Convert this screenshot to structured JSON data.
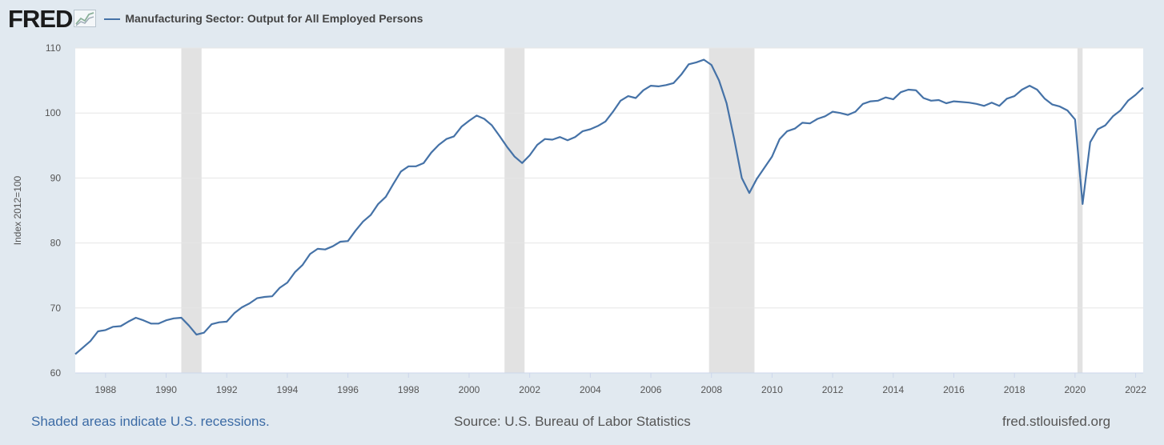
{
  "brand": "FRED",
  "legend": {
    "label": "Manufacturing Sector: Output for All Employed Persons"
  },
  "footer": {
    "recession_note": "Shaded areas indicate U.S. recessions.",
    "source": "Source: U.S. Bureau of Labor Statistics",
    "site": "fred.stlouisfed.org"
  },
  "colors": {
    "series": "#4572a7",
    "recession": "#e2e2e2",
    "background": "#e1e9f0",
    "plot": "#ffffff"
  },
  "chart_data": {
    "type": "line",
    "title": "",
    "ylabel": "Index 2012=100",
    "xlabel": "",
    "xlim": [
      1987.0,
      2022.25
    ],
    "ylim": [
      60,
      110
    ],
    "yticks": [
      60,
      70,
      80,
      90,
      100,
      110
    ],
    "xticks": [
      "1988",
      "1990",
      "1992",
      "1994",
      "1996",
      "1998",
      "2000",
      "2002",
      "2004",
      "2006",
      "2008",
      "2010",
      "2012",
      "2014",
      "2016",
      "2018",
      "2020",
      "2022"
    ],
    "recessions": [
      [
        1990.5,
        1991.17
      ],
      [
        2001.17,
        2001.83
      ],
      [
        2007.92,
        2009.42
      ],
      [
        2020.08,
        2020.25
      ]
    ],
    "series": [
      {
        "name": "Manufacturing Sector: Output for All Employed Persons",
        "x": [
          1987.0,
          1987.25,
          1987.5,
          1987.75,
          1988.0,
          1988.25,
          1988.5,
          1988.75,
          1989.0,
          1989.25,
          1989.5,
          1989.75,
          1990.0,
          1990.25,
          1990.5,
          1990.75,
          1991.0,
          1991.25,
          1991.5,
          1991.75,
          1992.0,
          1992.25,
          1992.5,
          1992.75,
          1993.0,
          1993.25,
          1993.5,
          1993.75,
          1994.0,
          1994.25,
          1994.5,
          1994.75,
          1995.0,
          1995.25,
          1995.5,
          1995.75,
          1996.0,
          1996.25,
          1996.5,
          1996.75,
          1997.0,
          1997.25,
          1997.5,
          1997.75,
          1998.0,
          1998.25,
          1998.5,
          1998.75,
          1999.0,
          1999.25,
          1999.5,
          1999.75,
          2000.0,
          2000.25,
          2000.5,
          2000.75,
          2001.0,
          2001.25,
          2001.5,
          2001.75,
          2002.0,
          2002.25,
          2002.5,
          2002.75,
          2003.0,
          2003.25,
          2003.5,
          2003.75,
          2004.0,
          2004.25,
          2004.5,
          2004.75,
          2005.0,
          2005.25,
          2005.5,
          2005.75,
          2006.0,
          2006.25,
          2006.5,
          2006.75,
          2007.0,
          2007.25,
          2007.5,
          2007.75,
          2008.0,
          2008.25,
          2008.5,
          2008.75,
          2009.0,
          2009.25,
          2009.5,
          2009.75,
          2010.0,
          2010.25,
          2010.5,
          2010.75,
          2011.0,
          2011.25,
          2011.5,
          2011.75,
          2012.0,
          2012.25,
          2012.5,
          2012.75,
          2013.0,
          2013.25,
          2013.5,
          2013.75,
          2014.0,
          2014.25,
          2014.5,
          2014.75,
          2015.0,
          2015.25,
          2015.5,
          2015.75,
          2016.0,
          2016.25,
          2016.5,
          2016.75,
          2017.0,
          2017.25,
          2017.5,
          2017.75,
          2018.0,
          2018.25,
          2018.5,
          2018.75,
          2019.0,
          2019.25,
          2019.5,
          2019.75,
          2020.0,
          2020.25,
          2020.5,
          2020.75,
          2021.0,
          2021.25,
          2021.5,
          2021.75,
          2022.0,
          2022.25
        ],
        "values": [
          62.9,
          63.9,
          64.9,
          66.4,
          66.6,
          67.1,
          67.2,
          67.9,
          68.5,
          68.1,
          67.6,
          67.6,
          68.1,
          68.4,
          68.5,
          67.3,
          65.9,
          66.2,
          67.5,
          67.8,
          67.9,
          69.2,
          70.1,
          70.7,
          71.5,
          71.7,
          71.8,
          73.1,
          73.9,
          75.5,
          76.6,
          78.3,
          79.1,
          79.0,
          79.5,
          80.2,
          80.3,
          81.9,
          83.3,
          84.3,
          86.0,
          87.1,
          89.1,
          91.0,
          91.8,
          91.8,
          92.3,
          93.9,
          95.1,
          96.0,
          96.4,
          97.9,
          98.8,
          99.6,
          99.1,
          98.1,
          96.5,
          94.8,
          93.3,
          92.3,
          93.5,
          95.1,
          96.0,
          95.9,
          96.3,
          95.8,
          96.3,
          97.2,
          97.5,
          98.0,
          98.7,
          100.2,
          101.9,
          102.6,
          102.3,
          103.5,
          104.2,
          104.1,
          104.3,
          104.6,
          105.9,
          107.5,
          107.8,
          108.2,
          107.4,
          105.0,
          101.5,
          96.0,
          90.0,
          87.7,
          89.9,
          91.6,
          93.3,
          96.0,
          97.2,
          97.6,
          98.5,
          98.4,
          99.1,
          99.5,
          100.2,
          100.0,
          99.7,
          100.2,
          101.4,
          101.8,
          101.9,
          102.4,
          102.1,
          103.2,
          103.6,
          103.5,
          102.3,
          101.9,
          102.0,
          101.5,
          101.8,
          101.7,
          101.6,
          101.4,
          101.1,
          101.6,
          101.1,
          102.2,
          102.6,
          103.6,
          104.2,
          103.6,
          102.2,
          101.3,
          101.0,
          100.4,
          99.0,
          86.0,
          95.5,
          97.5,
          98.1,
          99.5,
          100.4,
          101.9,
          102.8,
          103.9
        ]
      }
    ]
  }
}
